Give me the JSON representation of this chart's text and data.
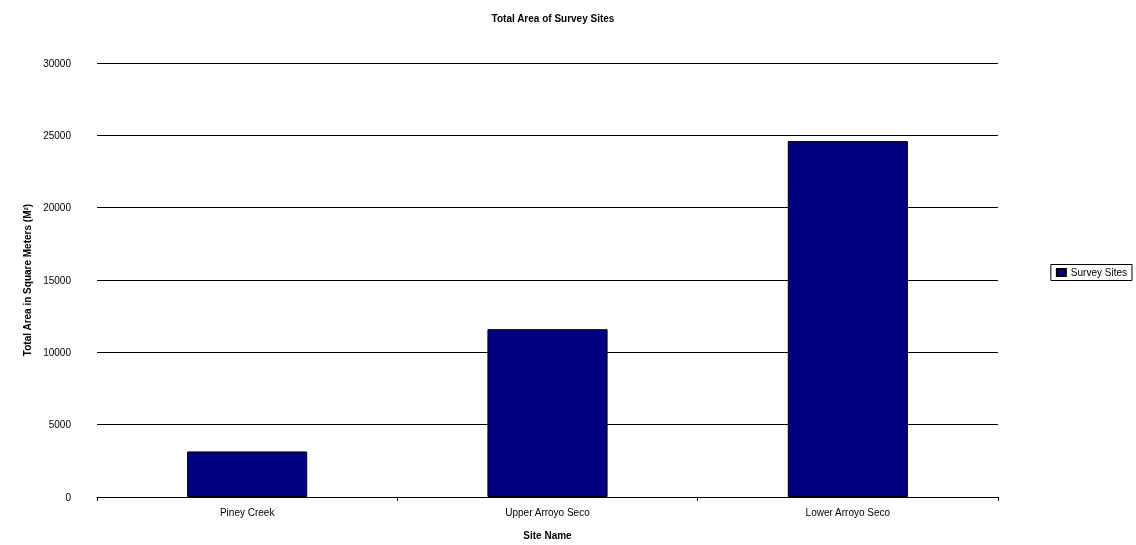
{
  "chart_data": {
    "type": "bar",
    "title": "Total Area of Survey Sites",
    "xlabel": "Site Name",
    "ylabel": "Total Area in Square Meters (M²)",
    "categories": [
      "Piney Creek",
      "Upper Arroyo Seco",
      "Lower Arroyo Seco"
    ],
    "series": [
      {
        "name": "Survey Sites",
        "color": "#000080",
        "values": [
          3150,
          11600,
          24600
        ]
      }
    ],
    "ylim": [
      0,
      30000
    ],
    "yticks": [
      0,
      5000,
      10000,
      15000,
      20000,
      25000,
      30000
    ],
    "grid": "y",
    "legend": "right"
  }
}
